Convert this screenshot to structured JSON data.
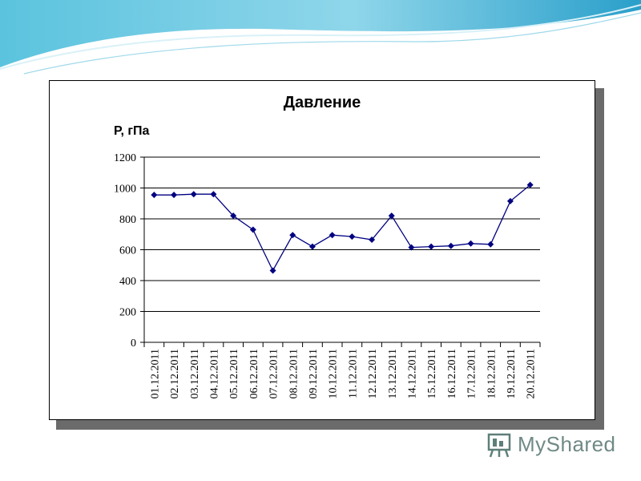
{
  "chart_data": {
    "type": "line",
    "title": "Давление",
    "ylabel": "Р, гПа",
    "xlabel": "",
    "ylim": [
      0,
      1200
    ],
    "ytick_step": 200,
    "yticks": [
      "0",
      "200",
      "400",
      "600",
      "800",
      "1000",
      "1200"
    ],
    "categories": [
      "01.12.2011",
      "02.12.2011",
      "03.12.2011",
      "04.12.2011",
      "05.12.2011",
      "06.12.2011",
      "07.12.2011",
      "08.12.2011",
      "09.12.2011",
      "10.12.2011",
      "11.12.2011",
      "12.12.2011",
      "13.12.2011",
      "14.12.2011",
      "15.12.2011",
      "16.12.2011",
      "17.12.2011",
      "18.12.2011",
      "19.12.2011",
      "20.12.2011"
    ],
    "series": [
      {
        "values": [
          955,
          955,
          960,
          960,
          820,
          730,
          465,
          695,
          620,
          695,
          685,
          665,
          820,
          615,
          620,
          625,
          640,
          635,
          915,
          1020
        ]
      }
    ],
    "line_color": "#000080",
    "grid": true,
    "legend": "none"
  },
  "watermark": {
    "text": "MyShared"
  }
}
